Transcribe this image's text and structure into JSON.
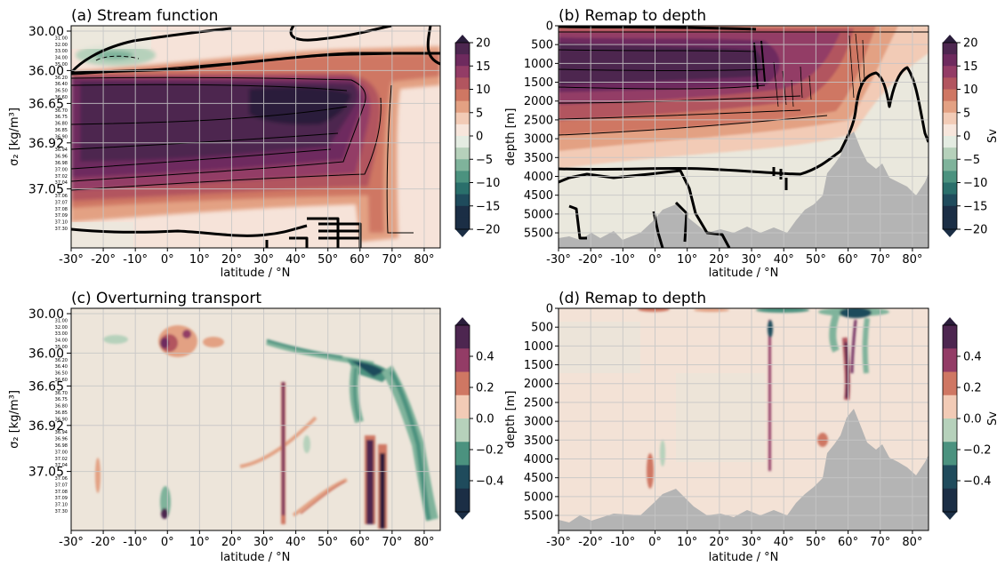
{
  "figure": {
    "colors": {
      "seq": [
        "#2a1d3b",
        "#4d2650",
        "#6e2a5e",
        "#933c66",
        "#b2555f",
        "#cf7763",
        "#e3a183",
        "#f2cbb6",
        "#f7e6dc"
      ],
      "div": [
        "#e4ece2",
        "#b6d1bb",
        "#7fb39b",
        "#4b927f",
        "#2a6f6b",
        "#1f4b5c",
        "#1b2e45"
      ],
      "background_pos": "#f6e3d9",
      "background_neutral": "#eae8dd",
      "topography": "#b4b4b4",
      "grid": "#c6c6c6",
      "contour": "#000000"
    }
  },
  "chart_data": [
    {
      "id": "a",
      "type": "heatmap",
      "title": "(a) Stream function",
      "xlabel": "latitude / °N",
      "ylabel": "σ₂ [kg/m³]",
      "xlim": [
        -30,
        85
      ],
      "x_ticks": [
        "-30°",
        "-20°",
        "-10°",
        "0°",
        "10°",
        "20°",
        "30°",
        "40°",
        "50°",
        "60°",
        "70°",
        "80°"
      ],
      "y_major_ticks": [
        "30.00",
        "36.00",
        "36.65",
        "36.92",
        "37.05"
      ],
      "y_minor_ticks": [
        "31.00",
        "32.00",
        "33.00",
        "34.00",
        "35.00",
        "36.20",
        "36.40",
        "36.50",
        "36.60",
        "36.70",
        "36.75",
        "36.80",
        "36.85",
        "36.90",
        "36.94",
        "36.96",
        "36.98",
        "37.00",
        "37.02",
        "37.04",
        "37.06",
        "37.07",
        "37.08",
        "37.09",
        "37.10",
        "37.30"
      ],
      "field_ranges": [
        {
          "level": 20,
          "lat_range": [
            -5,
            55
          ],
          "sigma_range": [
            "36.40",
            "36.85"
          ]
        },
        {
          "level": 15,
          "lat_range": [
            -30,
            60
          ],
          "sigma_range": [
            "36.20",
            "36.92"
          ]
        },
        {
          "level": 5,
          "lat_range": [
            35,
            75
          ],
          "sigma_range": [
            "36.00",
            "37.10"
          ]
        },
        {
          "level": -5,
          "lat_range": [
            -28,
            -12
          ],
          "sigma_range": [
            "32.00",
            "34.00"
          ]
        }
      ]
    },
    {
      "id": "b",
      "type": "heatmap",
      "title": "(b) Remap to depth",
      "xlabel": "latitude / °N",
      "ylabel": "depth [m]",
      "xlim": [
        -30,
        85
      ],
      "ylim": [
        5900,
        0
      ],
      "x_ticks": [
        "-30°",
        "-20°",
        "-10°",
        "0°",
        "10°",
        "20°",
        "30°",
        "40°",
        "50°",
        "60°",
        "70°",
        "80°"
      ],
      "y_ticks": [
        "0",
        "500",
        "1000",
        "1500",
        "2000",
        "2500",
        "3000",
        "3500",
        "4000",
        "4500",
        "5000",
        "5500"
      ],
      "field_ranges": [
        {
          "level": 20,
          "lat_range": [
            -30,
            60
          ],
          "depth_range": [
            500,
            1700
          ]
        },
        {
          "level": 10,
          "lat_range": [
            -30,
            60
          ],
          "depth_range": [
            100,
            3000
          ]
        },
        {
          "level": 0,
          "lat_range": [
            -30,
            85
          ],
          "depth_range": [
            3000,
            5900
          ]
        }
      ]
    },
    {
      "id": "c",
      "type": "heatmap",
      "title": "(c) Overturning transport",
      "xlabel": "latitude / °N",
      "ylabel": "σ₂ [kg/m³]",
      "xlim": [
        -30,
        85
      ],
      "x_ticks": [
        "-30°",
        "-20°",
        "-10°",
        "0°",
        "10°",
        "20°",
        "30°",
        "40°",
        "50°",
        "60°",
        "70°",
        "80°"
      ],
      "y_major_ticks": [
        "30.00",
        "36.00",
        "36.65",
        "36.92",
        "37.05"
      ],
      "y_minor_ticks": [
        "31.00",
        "32.00",
        "33.00",
        "34.00",
        "35.00",
        "36.20",
        "36.40",
        "36.50",
        "36.60",
        "36.70",
        "36.75",
        "36.80",
        "36.85",
        "36.90",
        "36.94",
        "36.96",
        "36.98",
        "37.00",
        "37.02",
        "37.04",
        "37.06",
        "37.07",
        "37.08",
        "37.09",
        "37.10",
        "37.30"
      ],
      "features": [
        {
          "lat": 0,
          "sigma": "32.50",
          "value": 0.4
        },
        {
          "lat": 36,
          "sigma": "37.00",
          "value": 0.5
        },
        {
          "lat": 62,
          "sigma": "37.05",
          "value": 0.5
        },
        {
          "lat": 66,
          "sigma": "37.05",
          "value": 0.5
        },
        {
          "lat": 60,
          "sigma": "36.20",
          "value": -0.5
        },
        {
          "lat": 75,
          "sigma": "36.96",
          "value": -0.3
        }
      ]
    },
    {
      "id": "d",
      "type": "heatmap",
      "title": "(d) Remap to depth",
      "xlabel": "latitude / °N",
      "ylabel": "depth [m]",
      "xlim": [
        -30,
        85
      ],
      "ylim": [
        5900,
        0
      ],
      "x_ticks": [
        "-30°",
        "-20°",
        "-10°",
        "0°",
        "10°",
        "20°",
        "30°",
        "40°",
        "50°",
        "60°",
        "70°",
        "80°"
      ],
      "y_ticks": [
        "0",
        "500",
        "1000",
        "1500",
        "2000",
        "2500",
        "3000",
        "3500",
        "4000",
        "4500",
        "5000",
        "5500"
      ],
      "features": [
        {
          "lat": 36,
          "depth": 2500,
          "value": 0.5
        },
        {
          "lat": 62,
          "depth": 1500,
          "value": 0.5
        },
        {
          "lat": 64,
          "depth": 300,
          "value": -0.5
        },
        {
          "lat": 0,
          "depth": 4500,
          "value": 0.3
        }
      ]
    }
  ],
  "colorbars": [
    {
      "id": "cb1",
      "label": "",
      "ticks": [
        "20",
        "15",
        "10",
        "5",
        "0",
        "−5",
        "−10",
        "−15",
        "−20"
      ]
    },
    {
      "id": "cb2",
      "label": "Sv",
      "ticks": [
        "20",
        "15",
        "10",
        "5",
        "0",
        "−5",
        "−10",
        "−15",
        "−20"
      ]
    },
    {
      "id": "cb3",
      "label": "",
      "ticks": [
        "0.4",
        "0.2",
        "0.0",
        "−0.2",
        "−0.4"
      ]
    },
    {
      "id": "cb4",
      "label": "Sv",
      "ticks": [
        "0.4",
        "0.2",
        "0.0",
        "−0.2",
        "−0.4"
      ]
    }
  ]
}
